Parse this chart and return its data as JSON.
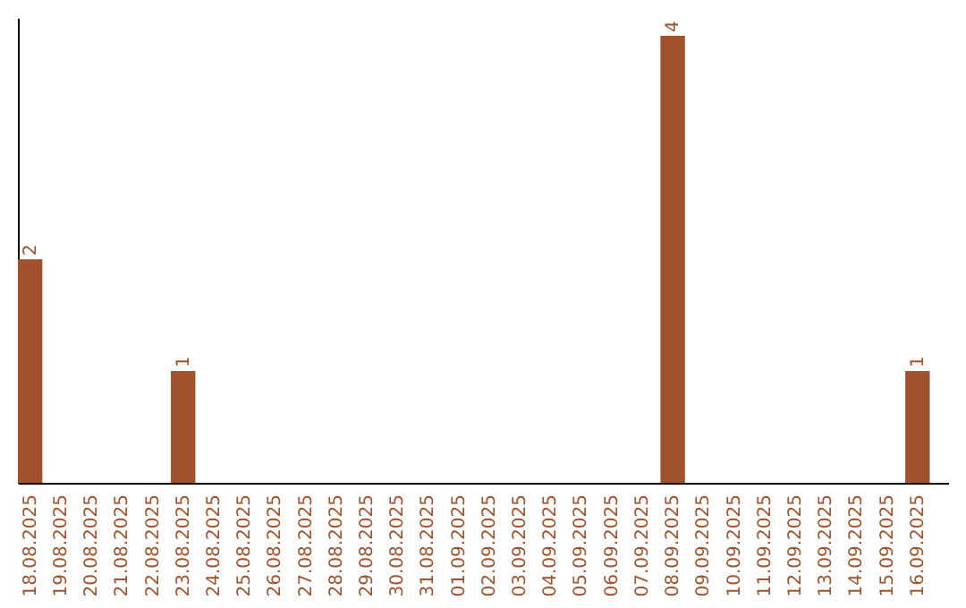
{
  "chart_data": {
    "type": "bar",
    "categories": [
      "18.08.2025",
      "19.08.2025",
      "20.08.2025",
      "21.08.2025",
      "22.08.2025",
      "23.08.2025",
      "24.08.2025",
      "25.08.2025",
      "26.08.2025",
      "27.08.2025",
      "28.08.2025",
      "29.08.2025",
      "30.08.2025",
      "31.08.2025",
      "01.09.2025",
      "02.09.2025",
      "03.09.2025",
      "04.09.2025",
      "05.09.2025",
      "06.09.2025",
      "07.09.2025",
      "08.09.2025",
      "09.09.2025",
      "10.09.2025",
      "11.09.2025",
      "12.09.2025",
      "13.09.2025",
      "14.09.2025",
      "15.09.2025",
      "16.09.2025"
    ],
    "values": [
      2,
      0,
      0,
      0,
      0,
      1,
      0,
      0,
      0,
      0,
      0,
      0,
      0,
      0,
      0,
      0,
      0,
      0,
      0,
      0,
      0,
      4,
      0,
      0,
      0,
      0,
      0,
      0,
      0,
      1
    ],
    "value_labels": [
      "2",
      null,
      null,
      null,
      null,
      "1",
      null,
      null,
      null,
      null,
      null,
      null,
      null,
      null,
      null,
      null,
      null,
      null,
      null,
      null,
      null,
      "4",
      null,
      null,
      null,
      null,
      null,
      null,
      null,
      "1"
    ],
    "color": "#a0522d",
    "ylim": [
      0,
      4.16
    ]
  }
}
